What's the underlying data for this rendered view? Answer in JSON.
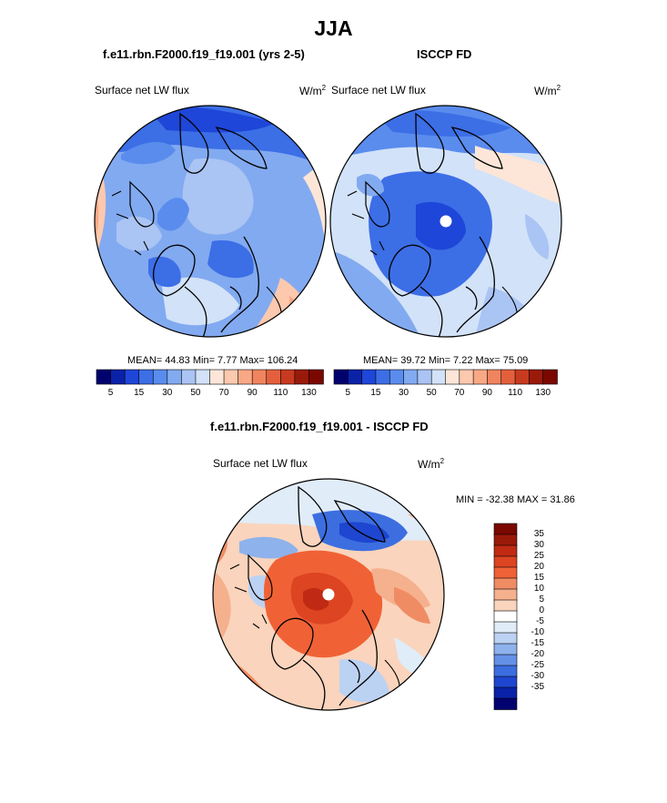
{
  "figure": {
    "title": "JJA",
    "left_panel": {
      "title": "f.e11.rbn.F2000.f19_f19.001 (yrs 2-5)",
      "variable": "Surface net LW flux",
      "units_base": "W/m",
      "units_exp": "2",
      "stats": "MEAN=  44.83  Min=   7.77  Max= 106.24"
    },
    "right_panel": {
      "title": "ISCCP FD",
      "variable": "Surface net LW flux",
      "units_base": "W/m",
      "units_exp": "2",
      "stats": "MEAN=  39.72  Min=   7.22  Max=  75.09"
    },
    "diff_panel": {
      "title": "f.e11.rbn.F2000.f19_f19.001 - ISCCP FD",
      "variable": "Surface net LW flux",
      "units_base": "W/m",
      "units_exp": "2",
      "stats": "MIN = -32.38 MAX =  31.86"
    },
    "abs_colorbar": {
      "colors": [
        "#02026e",
        "#0a22a8",
        "#1e46d8",
        "#3c6ee6",
        "#5a8cee",
        "#82aaf0",
        "#aac4f4",
        "#d2e2f8",
        "#fde6d8",
        "#fcc8ae",
        "#f8a884",
        "#f0845e",
        "#e4603c",
        "#c83a20",
        "#9a1a0a",
        "#7a0800"
      ],
      "tick_labels": [
        "5",
        "15",
        "30",
        "50",
        "70",
        "90",
        "110",
        "130"
      ]
    },
    "diff_colorbar": {
      "colors": [
        "#7a0800",
        "#9a1a0a",
        "#c02a14",
        "#dc4422",
        "#f06236",
        "#f08c64",
        "#f5b08e",
        "#fad4bc",
        "#ffffff",
        "#e0ecf8",
        "#bcd2f2",
        "#8eb2ec",
        "#6490e6",
        "#3c6ee0",
        "#1e46d0",
        "#0a22a8",
        "#02026e"
      ],
      "tick_labels": [
        "35",
        "30",
        "25",
        "20",
        "15",
        "10",
        "5",
        "0",
        "-5",
        "-10",
        "-15",
        "-20",
        "-25",
        "-30",
        "-35"
      ]
    }
  }
}
